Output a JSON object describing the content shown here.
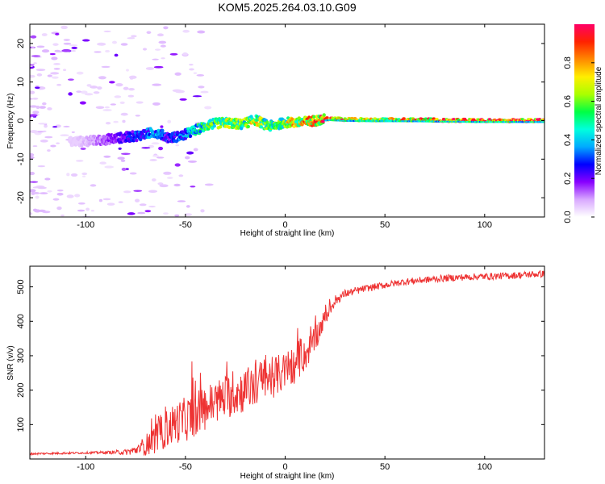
{
  "title": "KOM5.2025.264.03.10.G09",
  "chart_data": [
    {
      "type": "heatmap",
      "name": "spectrogram",
      "xlabel": "Height of straight line (km)",
      "ylabel": "Frequency (Hz)",
      "xlim": [
        -128,
        130
      ],
      "ylim": [
        -25,
        25
      ],
      "xticks": [
        -100,
        -50,
        0,
        50,
        100
      ],
      "xtick_labels": [
        "-100",
        "-50",
        "0",
        "50",
        "100"
      ],
      "yticks": [
        -20,
        -10,
        0,
        10,
        20
      ],
      "ytick_labels": [
        "-20",
        "-10",
        "0",
        "10",
        "20"
      ],
      "ridge": {
        "x": [
          -105,
          -95,
          -85,
          -75,
          -65,
          -58,
          -52,
          -45,
          -38,
          -30,
          -22,
          -15,
          -8,
          0,
          8,
          15,
          22,
          30,
          45,
          60,
          80,
          100,
          130
        ],
        "freq": [
          -5.5,
          -5.2,
          -4.6,
          -4.0,
          -3.0,
          -4.5,
          -4.0,
          -2.5,
          -1.0,
          -0.5,
          -1.0,
          0.2,
          -1.5,
          -0.5,
          -0.5,
          0.0,
          0.5,
          0.3,
          0.2,
          0.2,
          0.1,
          0.0,
          0.0
        ],
        "amplitude": [
          0.05,
          0.12,
          0.2,
          0.3,
          0.4,
          0.25,
          0.35,
          0.5,
          0.55,
          0.7,
          0.6,
          0.75,
          0.55,
          0.7,
          0.8,
          0.85,
          0.9,
          0.95,
          0.7,
          0.85,
          0.9,
          0.95,
          1.0
        ]
      },
      "colorbar": {
        "label": "Normalized spectral amplitude",
        "range": [
          0.0,
          1.0
        ],
        "ticks": [
          0.0,
          0.2,
          0.4,
          0.6,
          0.8
        ],
        "tick_labels": [
          "0.0",
          "0.2",
          "0.4",
          "0.6",
          "0.8"
        ],
        "colors": [
          "#ffffff",
          "#d8a8ff",
          "#8800ff",
          "#0000ff",
          "#00aaff",
          "#00ffdd",
          "#00ff44",
          "#aaff00",
          "#ffee00",
          "#ff8800",
          "#ff2200",
          "#ff0066"
        ]
      }
    },
    {
      "type": "line",
      "name": "snr",
      "xlabel": "Height of straight line (km)",
      "ylabel": "SNR (v/v)",
      "xlim": [
        -128,
        130
      ],
      "ylim": [
        0,
        560
      ],
      "xticks": [
        -100,
        -50,
        0,
        50,
        100
      ],
      "xtick_labels": [
        "-100",
        "-50",
        "0",
        "50",
        "100"
      ],
      "yticks": [
        100,
        200,
        300,
        400,
        500
      ],
      "ytick_labels": [
        "100",
        "200",
        "300",
        "400",
        "500"
      ],
      "color": "#ee3333",
      "series": [
        {
          "name": "SNR",
          "x": [
            -128,
            -120,
            -110,
            -100,
            -90,
            -80,
            -75,
            -70,
            -65,
            -60,
            -55,
            -50,
            -45,
            -40,
            -35,
            -30,
            -25,
            -20,
            -15,
            -10,
            -5,
            0,
            5,
            10,
            15,
            20,
            25,
            30,
            40,
            50,
            60,
            70,
            80,
            90,
            100,
            110,
            120,
            130
          ],
          "y": [
            15,
            16,
            17,
            18,
            19,
            20,
            25,
            40,
            60,
            85,
            105,
            115,
            130,
            150,
            165,
            180,
            190,
            200,
            215,
            230,
            240,
            255,
            270,
            300,
            350,
            410,
            460,
            480,
            495,
            505,
            515,
            520,
            525,
            528,
            530,
            532,
            535,
            538
          ],
          "noise": [
            3,
            3,
            3,
            3,
            4,
            8,
            15,
            30,
            45,
            55,
            60,
            65,
            65,
            65,
            65,
            65,
            65,
            65,
            65,
            65,
            60,
            55,
            50,
            45,
            40,
            25,
            15,
            12,
            10,
            10,
            10,
            10,
            10,
            10,
            10,
            10,
            10,
            10
          ]
        }
      ]
    }
  ]
}
